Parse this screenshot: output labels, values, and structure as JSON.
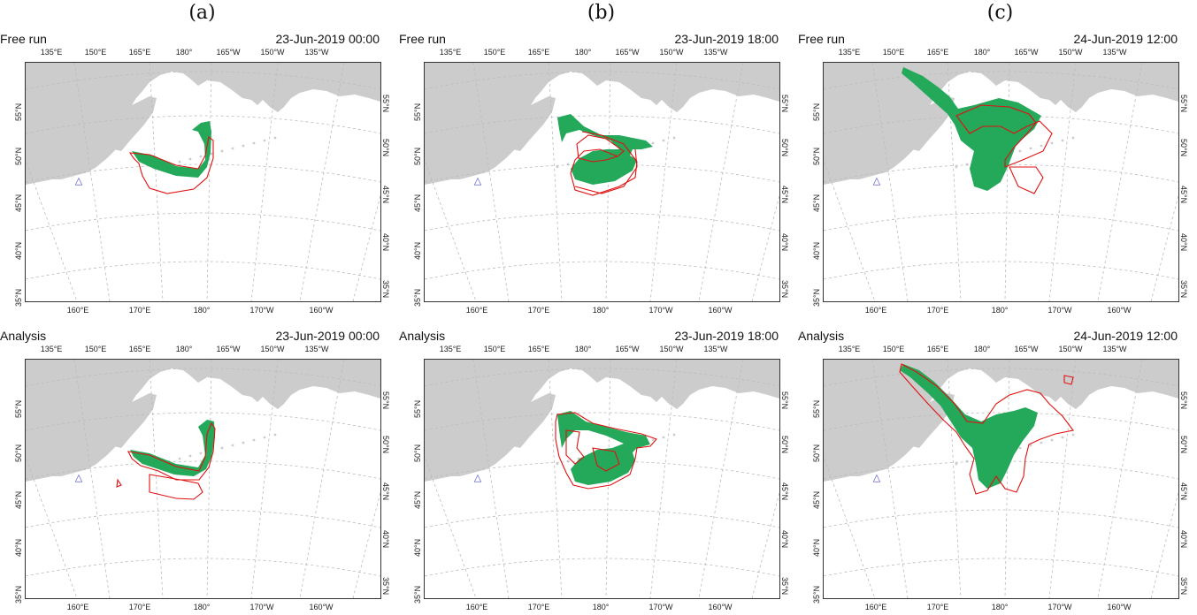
{
  "columns": [
    {
      "label": "(a)",
      "time": "23-Jun-2019 00:00"
    },
    {
      "label": "(b)",
      "time": "23-Jun-2019 18:00"
    },
    {
      "label": "(c)",
      "time": "24-Jun-2019 12:00"
    }
  ],
  "rows": [
    {
      "title": "Free run"
    },
    {
      "title": "Analysis"
    }
  ],
  "top_lon_ticks": [
    "135°E",
    "150°E",
    "165°E",
    "180°",
    "165°W",
    "150°W",
    "135°W"
  ],
  "bottom_lon_ticks": [
    "160°E",
    "170°E",
    "180°",
    "170°W",
    "160°W"
  ],
  "lat_ticks": [
    "55°N",
    "50°N",
    "45°N",
    "40°N",
    "35°N"
  ],
  "colors": {
    "land": "#cccccc",
    "plume_fill": "#24a85a",
    "contour": "#e01010",
    "marker": "#4444cc",
    "grid": "#bbbbbb"
  },
  "marker_symbol": "△"
}
